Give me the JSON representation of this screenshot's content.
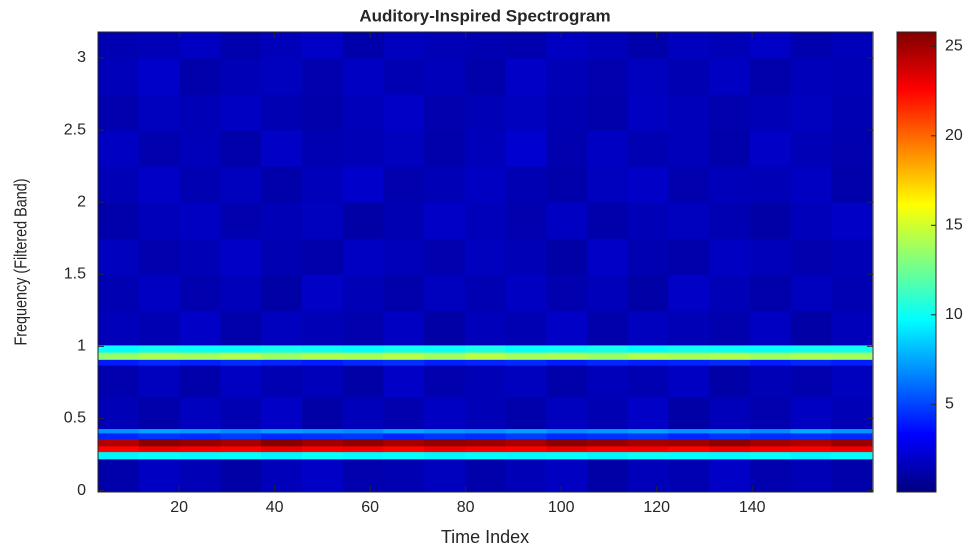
{
  "chart_data": {
    "type": "heatmap",
    "title": "Auditory-Inspired Spectrogram",
    "x_label": "Time Index",
    "y_label": "Frequency (Filtered Band)",
    "colormap": "jet",
    "x": [
      7.3,
      15.8,
      24.4,
      32.9,
      41.4,
      50.0,
      58.5,
      67.0,
      75.6,
      84.1,
      92.6,
      101.2,
      109.7,
      118.2,
      126.7,
      135.3,
      143.8,
      152.3,
      160.8
    ],
    "y_edges": [
      -0.01,
      0.22,
      0.27,
      0.31,
      0.36,
      0.4,
      0.43,
      0.65,
      0.87,
      0.91,
      0.96,
      1.01,
      1.25,
      1.5,
      1.75,
      2.0,
      2.25,
      2.5,
      2.75,
      3.0,
      3.18
    ],
    "z": [
      [
        1.2,
        1.8,
        1.5,
        1.1,
        1.6,
        1.9,
        1.3,
        1.4,
        1.7,
        1.2,
        1.5,
        1.8,
        1.1,
        1.6,
        1.4,
        1.9,
        1.3,
        1.5,
        1.2
      ],
      [
        9.5,
        9.8,
        9.6,
        9.7,
        9.5,
        9.9,
        9.6,
        9.8,
        9.5,
        9.7,
        9.6,
        9.8,
        9.5,
        9.9,
        9.7,
        9.6,
        9.8,
        9.5,
        9.7
      ],
      [
        22.5,
        23.0,
        22.8,
        22.6,
        23.1,
        22.7,
        22.9,
        22.5,
        23.0,
        22.8,
        22.6,
        23.1,
        22.7,
        22.9,
        22.5,
        23.0,
        22.8,
        22.6,
        23.0
      ],
      [
        24.5,
        25.5,
        25.2,
        24.8,
        25.6,
        25.0,
        25.4,
        24.9,
        25.3,
        25.1,
        24.7,
        25.5,
        25.2,
        24.8,
        25.0,
        25.4,
        24.9,
        24.6,
        25.1
      ],
      [
        4.2,
        4.6,
        4.4,
        4.8,
        4.3,
        4.5,
        4.7,
        4.2,
        4.6,
        4.4,
        4.8,
        4.3,
        4.5,
        4.7,
        4.2,
        4.6,
        4.4,
        4.5,
        4.3
      ],
      [
        7.0,
        7.4,
        7.2,
        6.8,
        7.3,
        7.1,
        6.9,
        7.5,
        7.2,
        7.0,
        7.3,
        6.9,
        7.1,
        7.4,
        7.0,
        7.2,
        6.8,
        7.6,
        7.1
      ],
      [
        1.5,
        1.2,
        1.7,
        1.4,
        1.9,
        1.1,
        1.6,
        1.3,
        1.8,
        1.5,
        1.2,
        1.7,
        1.4,
        1.9,
        1.1,
        1.6,
        1.3,
        1.8,
        1.5
      ],
      [
        1.3,
        1.7,
        1.2,
        1.8,
        1.4,
        1.6,
        1.1,
        1.9,
        1.3,
        1.5,
        1.7,
        1.2,
        1.6,
        1.4,
        1.8,
        1.1,
        1.5,
        1.3,
        1.7
      ],
      [
        4.0,
        4.3,
        4.1,
        4.4,
        4.2,
        4.0,
        4.3,
        4.5,
        4.1,
        4.2,
        4.4,
        4.0,
        4.3,
        4.1,
        4.2,
        4.4,
        4.0,
        4.3,
        4.1
      ],
      [
        13.5,
        14.0,
        13.8,
        14.2,
        13.6,
        14.1,
        13.9,
        14.3,
        13.7,
        14.4,
        13.8,
        14.0,
        13.6,
        14.2,
        13.9,
        14.1,
        13.7,
        14.0,
        13.8
      ],
      [
        9.8,
        10.2,
        10.0,
        9.9,
        10.3,
        10.1,
        9.8,
        10.2,
        10.0,
        10.4,
        9.9,
        10.1,
        10.3,
        9.8,
        10.2,
        10.0,
        9.9,
        10.1,
        10.2
      ],
      [
        1.6,
        1.4,
        1.9,
        1.2,
        1.7,
        1.5,
        1.3,
        1.8,
        1.1,
        1.6,
        1.4,
        1.9,
        1.2,
        1.7,
        1.5,
        1.3,
        1.8,
        1.1,
        1.6
      ],
      [
        1.4,
        1.8,
        1.3,
        1.6,
        1.1,
        1.9,
        1.5,
        1.2,
        1.7,
        1.4,
        1.8,
        1.3,
        1.6,
        1.1,
        1.9,
        1.5,
        1.2,
        1.7,
        1.4
      ],
      [
        1.7,
        1.3,
        1.5,
        1.9,
        1.4,
        1.2,
        1.8,
        1.6,
        1.3,
        1.7,
        1.5,
        1.1,
        1.9,
        1.4,
        1.2,
        1.8,
        1.6,
        1.3,
        1.5
      ],
      [
        1.2,
        1.6,
        1.8,
        1.3,
        1.5,
        1.7,
        1.1,
        1.4,
        1.9,
        1.6,
        1.3,
        1.8,
        1.2,
        1.5,
        1.7,
        1.4,
        1.1,
        1.6,
        1.9
      ],
      [
        1.5,
        1.9,
        1.4,
        1.7,
        1.2,
        1.6,
        2.0,
        1.3,
        1.5,
        1.8,
        1.4,
        1.2,
        1.7,
        1.9,
        1.3,
        1.6,
        1.5,
        1.8,
        1.2
      ],
      [
        1.8,
        1.3,
        1.6,
        1.2,
        1.9,
        1.4,
        1.5,
        1.7,
        1.2,
        1.6,
        2.1,
        1.3,
        1.8,
        1.4,
        1.6,
        1.2,
        1.9,
        1.5,
        1.3
      ],
      [
        1.3,
        1.7,
        1.5,
        1.8,
        1.4,
        1.2,
        1.6,
        1.9,
        1.3,
        1.5,
        1.7,
        1.4,
        1.2,
        1.8,
        1.6,
        1.3,
        1.5,
        1.7,
        1.4
      ],
      [
        1.6,
        2.0,
        1.2,
        1.5,
        1.7,
        1.3,
        1.8,
        1.4,
        1.6,
        1.2,
        1.9,
        1.5,
        1.3,
        1.7,
        1.4,
        1.8,
        1.2,
        1.6,
        1.5
      ],
      [
        1.4,
        1.5,
        1.8,
        1.3,
        1.6,
        1.9,
        1.2,
        1.7,
        1.5,
        1.4,
        1.3,
        1.8,
        1.6,
        1.2,
        1.7,
        1.5,
        1.9,
        1.3,
        1.6
      ]
    ],
    "xlim": [
      3,
      165.3
    ],
    "ylim": [
      -0.01,
      3.18
    ],
    "xticks": [
      20,
      40,
      60,
      80,
      100,
      120,
      140
    ],
    "yticks": [
      0,
      0.5,
      1,
      1.5,
      2,
      2.5,
      3
    ],
    "clim": [
      0.1,
      25.8
    ],
    "cticks": [
      5,
      10,
      15,
      20,
      25
    ]
  }
}
